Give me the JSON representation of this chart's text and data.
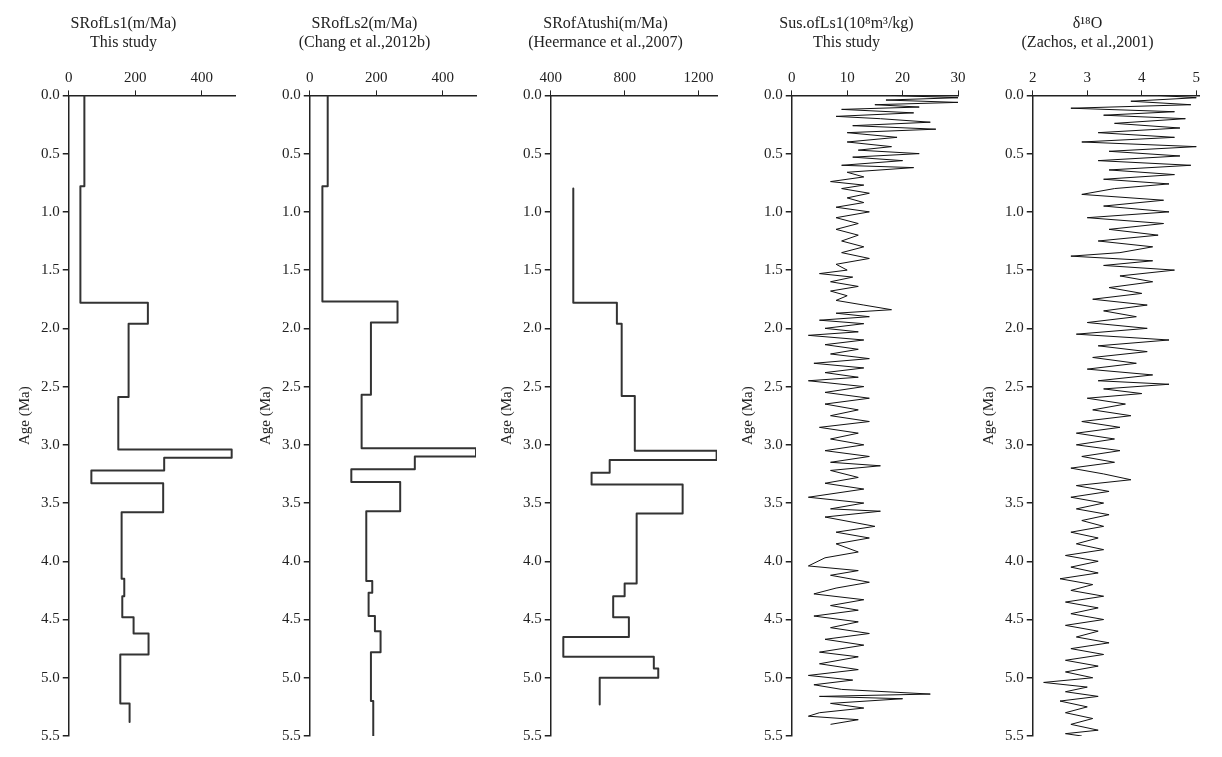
{
  "chart_data": [
    {
      "type": "step",
      "title": "SRofLs1(m/Ma)",
      "subtitle": "This study",
      "ylabel": "Age (Ma)",
      "xlim": [
        0,
        500
      ],
      "xticks": [
        0,
        200,
        400
      ],
      "ylim": [
        5.5,
        0
      ],
      "yticks": [
        {
          "value": 0,
          "label": "0.0"
        },
        {
          "value": 0.5,
          "label": "0.5"
        },
        {
          "value": 1,
          "label": "1.0"
        },
        {
          "value": 1.5,
          "label": "1.5"
        },
        {
          "value": 2,
          "label": "2.0"
        },
        {
          "value": 2.5,
          "label": "2.5"
        },
        {
          "value": 3,
          "label": "3.0"
        },
        {
          "value": 3.5,
          "label": "3.5"
        },
        {
          "value": 4,
          "label": "4.0"
        },
        {
          "value": 4.5,
          "label": "4.5"
        },
        {
          "value": 5,
          "label": "5.0"
        },
        {
          "value": 5.5,
          "label": "5.5"
        }
      ],
      "grid": false,
      "legend": false,
      "series": [
        {
          "color": "#333333",
          "x": [
            47,
            47,
            35,
            35,
            238,
            238,
            180,
            180,
            149,
            149,
            490,
            490,
            287,
            287,
            68,
            68,
            284,
            284,
            159,
            159,
            167,
            167,
            161,
            161,
            195,
            195,
            240,
            240,
            155,
            155,
            183,
            183
          ],
          "values": [
            0,
            0.78,
            0.78,
            1.78,
            1.78,
            1.96,
            1.96,
            2.59,
            2.59,
            3.04,
            3.04,
            3.11,
            3.11,
            3.22,
            3.22,
            3.33,
            3.33,
            3.58,
            3.58,
            4.15,
            4.15,
            4.3,
            4.3,
            4.48,
            4.48,
            4.62,
            4.62,
            4.8,
            4.8,
            5.22,
            5.22,
            5.38
          ]
        }
      ]
    },
    {
      "type": "step",
      "title": "SRofLs2(m/Ma)",
      "subtitle": "(Chang et al.,2012b)",
      "ylabel": "Age (Ma)",
      "xlim": [
        0,
        500
      ],
      "xticks": [
        0,
        200,
        400
      ],
      "ylim": [
        5.5,
        0
      ],
      "yticks": [
        {
          "value": 0,
          "label": "0.0"
        },
        {
          "value": 0.5,
          "label": "0.5"
        },
        {
          "value": 1,
          "label": "1.0"
        },
        {
          "value": 1.5,
          "label": "1.5"
        },
        {
          "value": 2,
          "label": "2.0"
        },
        {
          "value": 2.5,
          "label": "2.5"
        },
        {
          "value": 3,
          "label": "3.0"
        },
        {
          "value": 3.5,
          "label": "3.5"
        },
        {
          "value": 4,
          "label": "4.0"
        },
        {
          "value": 4.5,
          "label": "4.5"
        },
        {
          "value": 5,
          "label": "5.0"
        },
        {
          "value": 5.5,
          "label": "5.5"
        }
      ],
      "grid": false,
      "legend": false,
      "series": [
        {
          "color": "#333333",
          "x": [
            54,
            54,
            38,
            38,
            264,
            264,
            184,
            184,
            156,
            156,
            500,
            500,
            316,
            316,
            125,
            125,
            272,
            272,
            170,
            170,
            188,
            188,
            177,
            177,
            196,
            196,
            213,
            213,
            184,
            184,
            191,
            191
          ],
          "values": [
            0,
            0.78,
            0.78,
            1.77,
            1.77,
            1.95,
            1.95,
            2.57,
            2.57,
            3.03,
            3.03,
            3.1,
            3.1,
            3.21,
            3.21,
            3.32,
            3.32,
            3.57,
            3.57,
            4.17,
            4.17,
            4.27,
            4.27,
            4.47,
            4.47,
            4.6,
            4.6,
            4.78,
            4.78,
            5.2,
            5.2,
            5.5
          ]
        }
      ]
    },
    {
      "type": "step",
      "title": "SRofAtushi(m/Ma)",
      "subtitle": "(Heermance et al.,2007)",
      "ylabel": "Age (Ma)",
      "xlim": [
        400,
        1300
      ],
      "xticks": [
        400,
        800,
        1200
      ],
      "ylim": [
        5.5,
        0
      ],
      "yticks": [
        {
          "value": 0,
          "label": "0.0"
        },
        {
          "value": 0.5,
          "label": "0.5"
        },
        {
          "value": 1,
          "label": "1.0"
        },
        {
          "value": 1.5,
          "label": "1.5"
        },
        {
          "value": 2,
          "label": "2.0"
        },
        {
          "value": 2.5,
          "label": "2.5"
        },
        {
          "value": 3,
          "label": "3.0"
        },
        {
          "value": 3.5,
          "label": "3.5"
        },
        {
          "value": 4,
          "label": "4.0"
        },
        {
          "value": 4.5,
          "label": "4.5"
        },
        {
          "value": 5,
          "label": "5.0"
        },
        {
          "value": 5.5,
          "label": "5.5"
        }
      ],
      "grid": false,
      "legend": false,
      "series": [
        {
          "color": "#333333",
          "x": [
            522,
            522,
            758,
            758,
            784,
            784,
            855,
            855,
            1298,
            1298,
            719,
            719,
            621,
            621,
            1114,
            1114,
            865,
            865,
            800,
            800,
            738,
            738,
            823,
            823,
            468,
            468,
            958,
            958,
            982,
            982,
            665,
            665
          ],
          "values": [
            0.8,
            1.78,
            1.78,
            1.96,
            1.96,
            2.58,
            2.58,
            3.05,
            3.05,
            3.13,
            3.13,
            3.24,
            3.24,
            3.34,
            3.34,
            3.59,
            3.59,
            4.19,
            4.19,
            4.3,
            4.3,
            4.48,
            4.48,
            4.65,
            4.65,
            4.82,
            4.82,
            4.92,
            4.92,
            5.0,
            5.0,
            5.23
          ]
        }
      ]
    },
    {
      "type": "line",
      "title": "Sus.ofLs1(10⁸m³/kg)",
      "subtitle": "This study",
      "ylabel": "Age (Ma)",
      "xlim": [
        0,
        30
      ],
      "xticks": [
        0,
        10,
        20,
        30
      ],
      "ylim": [
        5.5,
        0
      ],
      "yticks": [
        {
          "value": 0,
          "label": "0.0"
        },
        {
          "value": 0.5,
          "label": "0.5"
        },
        {
          "value": 1,
          "label": "1.0"
        },
        {
          "value": 1.5,
          "label": "1.5"
        },
        {
          "value": 2,
          "label": "2.0"
        },
        {
          "value": 2.5,
          "label": "2.5"
        },
        {
          "value": 3,
          "label": "3.0"
        },
        {
          "value": 3.5,
          "label": "3.5"
        },
        {
          "value": 4,
          "label": "4.0"
        },
        {
          "value": 4.5,
          "label": "4.5"
        },
        {
          "value": 5,
          "label": "5.0"
        },
        {
          "value": 5.5,
          "label": "5.5"
        }
      ],
      "grid": false,
      "legend": false,
      "series": [
        {
          "color": "#111111",
          "x": [
            18,
            30,
            17,
            30,
            15,
            23,
            9,
            22,
            8,
            16,
            25,
            11,
            26,
            10,
            19,
            10,
            18,
            12,
            23,
            11,
            20,
            9,
            22,
            10,
            13,
            7,
            13,
            9,
            14,
            10,
            13,
            8,
            14,
            8,
            12,
            8,
            12,
            9,
            13,
            9,
            14,
            8,
            10,
            5,
            11,
            7,
            12,
            7,
            10,
            8,
            13,
            18,
            8,
            14,
            5,
            13,
            6,
            12,
            3,
            13,
            6,
            12,
            7,
            14,
            4,
            13,
            6,
            12,
            3,
            13,
            6,
            14,
            6,
            12,
            7,
            14,
            5,
            12,
            7,
            13,
            6,
            14,
            7,
            16,
            7,
            12,
            6,
            13,
            3,
            13,
            7,
            16,
            6,
            15,
            8,
            14,
            8,
            12,
            6,
            3,
            12,
            7,
            14,
            8,
            4,
            13,
            7,
            12,
            4,
            12,
            7,
            14,
            6,
            13,
            5,
            12,
            5,
            12,
            3,
            11,
            4,
            9,
            25,
            5,
            20,
            7,
            13,
            5,
            3,
            12,
            7
          ],
          "values": [
            0,
            0.02,
            0.04,
            0.06,
            0.08,
            0.1,
            0.12,
            0.15,
            0.18,
            0.2,
            0.23,
            0.26,
            0.29,
            0.32,
            0.36,
            0.4,
            0.44,
            0.47,
            0.5,
            0.53,
            0.56,
            0.6,
            0.62,
            0.66,
            0.7,
            0.74,
            0.77,
            0.8,
            0.84,
            0.88,
            0.92,
            0.96,
            1.0,
            1.05,
            1.1,
            1.15,
            1.2,
            1.25,
            1.3,
            1.35,
            1.4,
            1.45,
            1.5,
            1.53,
            1.56,
            1.6,
            1.64,
            1.68,
            1.72,
            1.76,
            1.8,
            1.84,
            1.87,
            1.9,
            1.93,
            1.96,
            2.0,
            2.03,
            2.06,
            2.1,
            2.14,
            2.18,
            2.22,
            2.26,
            2.3,
            2.34,
            2.38,
            2.42,
            2.45,
            2.5,
            2.55,
            2.6,
            2.65,
            2.7,
            2.75,
            2.8,
            2.85,
            2.9,
            2.95,
            3.0,
            3.05,
            3.1,
            3.15,
            3.18,
            3.22,
            3.28,
            3.33,
            3.38,
            3.45,
            3.5,
            3.55,
            3.57,
            3.62,
            3.7,
            3.75,
            3.8,
            3.85,
            3.92,
            3.97,
            4.04,
            4.08,
            4.12,
            4.18,
            4.23,
            4.28,
            4.33,
            4.38,
            4.42,
            4.47,
            4.52,
            4.57,
            4.62,
            4.67,
            4.72,
            4.78,
            4.82,
            4.88,
            4.93,
            4.98,
            5.02,
            5.06,
            5.1,
            5.14,
            5.16,
            5.18,
            5.22,
            5.26,
            5.3,
            5.33,
            5.36,
            5.4
          ]
        }
      ]
    },
    {
      "type": "line",
      "title": "δ¹⁸O",
      "subtitle": "(Zachos, et al.,2001)",
      "ylabel": "Age (Ma)",
      "xlim": [
        2,
        5.05
      ],
      "xticks": [
        2,
        3,
        4,
        5
      ],
      "ylim": [
        5.5,
        0
      ],
      "yticks": [
        {
          "value": 0,
          "label": "0.0"
        },
        {
          "value": 0.5,
          "label": "0.5"
        },
        {
          "value": 1,
          "label": "1.0"
        },
        {
          "value": 1.5,
          "label": "1.5"
        },
        {
          "value": 2,
          "label": "2.0"
        },
        {
          "value": 2.5,
          "label": "2.5"
        },
        {
          "value": 3,
          "label": "3.0"
        },
        {
          "value": 3.5,
          "label": "3.5"
        },
        {
          "value": 4,
          "label": "4.0"
        },
        {
          "value": 4.5,
          "label": "4.5"
        },
        {
          "value": 5,
          "label": "5.0"
        },
        {
          "value": 5.5,
          "label": "5.5"
        }
      ],
      "grid": false,
      "legend": false,
      "series": [
        {
          "color": "#111111",
          "x": [
            4.3,
            5.0,
            3.8,
            4.9,
            2.7,
            4.6,
            3.3,
            4.8,
            3.5,
            4.7,
            3.2,
            4.6,
            2.9,
            5.0,
            3.4,
            4.7,
            3.2,
            4.9,
            3.4,
            4.6,
            3.3,
            4.5,
            3.5,
            2.9,
            4.4,
            3.3,
            4.5,
            3.0,
            4.4,
            3.4,
            4.3,
            3.2,
            4.2,
            3.6,
            2.7,
            4.2,
            3.3,
            4.6,
            3.6,
            4.2,
            3.4,
            4.0,
            3.1,
            4.1,
            3.3,
            3.9,
            3.0,
            4.1,
            2.8,
            4.5,
            3.2,
            4.1,
            3.1,
            3.9,
            3.0,
            4.2,
            3.2,
            4.5,
            3.3,
            4.0,
            3.0,
            3.7,
            3.1,
            3.8,
            2.9,
            3.6,
            2.8,
            3.5,
            2.8,
            3.6,
            2.9,
            3.5,
            2.7,
            3.3,
            3.8,
            2.8,
            3.4,
            2.7,
            3.3,
            2.8,
            3.4,
            2.9,
            3.3,
            2.7,
            3.2,
            2.8,
            3.3,
            2.6,
            3.2,
            2.7,
            3.2,
            2.5,
            3.1,
            2.7,
            3.3,
            2.6,
            3.2,
            2.7,
            3.3,
            2.6,
            3.2,
            2.8,
            3.4,
            2.7,
            3.3,
            2.6,
            3.2,
            2.6,
            3.1,
            2.2,
            3.0,
            2.6,
            3.2,
            2.5,
            3.0,
            2.6,
            3.1,
            2.7,
            3.2,
            2.6,
            2.9
          ],
          "values": [
            0,
            0.02,
            0.05,
            0.08,
            0.11,
            0.14,
            0.17,
            0.2,
            0.24,
            0.28,
            0.32,
            0.36,
            0.4,
            0.44,
            0.48,
            0.52,
            0.56,
            0.6,
            0.64,
            0.68,
            0.72,
            0.76,
            0.8,
            0.85,
            0.9,
            0.95,
            1.0,
            1.05,
            1.1,
            1.15,
            1.2,
            1.25,
            1.3,
            1.35,
            1.38,
            1.42,
            1.46,
            1.5,
            1.55,
            1.6,
            1.65,
            1.7,
            1.75,
            1.8,
            1.85,
            1.9,
            1.95,
            2.0,
            2.05,
            2.1,
            2.15,
            2.2,
            2.25,
            2.3,
            2.35,
            2.4,
            2.45,
            2.48,
            2.52,
            2.56,
            2.6,
            2.65,
            2.7,
            2.75,
            2.8,
            2.85,
            2.9,
            2.95,
            3.0,
            3.05,
            3.1,
            3.15,
            3.2,
            3.25,
            3.3,
            3.35,
            3.4,
            3.45,
            3.5,
            3.55,
            3.6,
            3.65,
            3.7,
            3.75,
            3.8,
            3.85,
            3.9,
            3.95,
            4.0,
            4.05,
            4.1,
            4.15,
            4.2,
            4.25,
            4.3,
            4.35,
            4.4,
            4.45,
            4.5,
            4.55,
            4.6,
            4.65,
            4.7,
            4.75,
            4.8,
            4.85,
            4.9,
            4.95,
            5.0,
            5.04,
            5.08,
            5.12,
            5.16,
            5.2,
            5.25,
            5.3,
            5.35,
            5.4,
            5.45,
            5.48,
            5.5
          ]
        }
      ]
    }
  ]
}
